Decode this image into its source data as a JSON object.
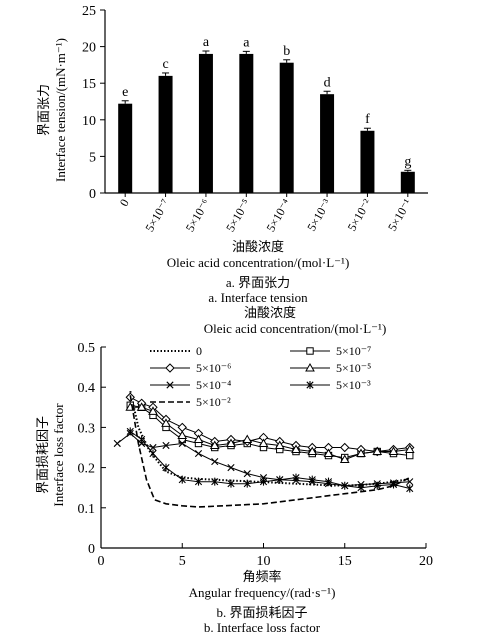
{
  "chart_data": [
    {
      "type": "bar",
      "ylabel_cn": "界面张力",
      "ylabel": "Interface tension/(mN·m⁻¹)",
      "xlabel_cn": "油酸浓度",
      "xlabel": "Oleic acid concentration/(mol·L⁻¹)",
      "caption_cn": "a. 界面张力",
      "caption": "a. Interface tension",
      "ylim": [
        0,
        25
      ],
      "yticks": [
        "0",
        "5",
        "10",
        "15",
        "20",
        "25"
      ],
      "categories": [
        "0",
        "5×10⁻⁷",
        "5×10⁻⁶",
        "5×10⁻⁵",
        "5×10⁻⁴",
        "5×10⁻³",
        "5×10⁻²",
        "5×10⁻¹"
      ],
      "values": [
        12.2,
        16.0,
        19.0,
        19.0,
        17.8,
        13.5,
        8.5,
        2.9
      ],
      "errors": [
        0.4,
        0.4,
        0.4,
        0.35,
        0.4,
        0.4,
        0.35,
        0.2
      ],
      "letters": [
        "e",
        "c",
        "a",
        "a",
        "b",
        "d",
        "f",
        "g"
      ]
    },
    {
      "type": "line",
      "top_label_cn": "油酸浓度",
      "top_label": "Oleic acid concentration/(mol·L⁻¹)",
      "ylabel_cn": "界面损耗因子",
      "ylabel": "Interface loss factor",
      "xlabel_cn": "角频率",
      "xlabel": "Angular frequency/(rad·s⁻¹)",
      "caption_cn": "b. 界面损耗因子",
      "caption": "b. Interface loss factor",
      "xlim": [
        0,
        20
      ],
      "ylim": [
        0,
        0.5
      ],
      "xticks": [
        "0",
        "5",
        "10",
        "15",
        "20"
      ],
      "yticks": [
        "0",
        "0.1",
        "0.2",
        "0.3",
        "0.4",
        "0.5"
      ],
      "series": [
        {
          "name": "0",
          "style": "dotted",
          "marker": "none",
          "x": [
            1.8,
            2.3,
            3,
            4,
            5,
            6,
            7,
            8,
            9,
            10,
            11,
            12,
            13,
            14,
            15,
            16,
            17,
            18,
            19
          ],
          "y": [
            0.39,
            0.3,
            0.24,
            0.19,
            0.175,
            0.172,
            0.17,
            0.168,
            0.166,
            0.164,
            0.162,
            0.16,
            0.158,
            0.156,
            0.155,
            0.157,
            0.16,
            0.165,
            0.172
          ]
        },
        {
          "name": "5×10⁻⁷",
          "style": "solid",
          "marker": "square",
          "x": [
            1.8,
            2.5,
            3.2,
            4,
            5,
            6,
            7,
            8,
            9,
            10,
            11,
            12,
            13,
            14,
            15,
            16,
            17,
            18,
            19
          ],
          "y": [
            0.355,
            0.35,
            0.33,
            0.3,
            0.27,
            0.26,
            0.25,
            0.255,
            0.26,
            0.25,
            0.245,
            0.24,
            0.235,
            0.23,
            0.225,
            0.235,
            0.24,
            0.235,
            0.23
          ]
        },
        {
          "name": "5×10⁻⁶",
          "style": "solid",
          "marker": "diamond",
          "x": [
            1.8,
            2.5,
            3.2,
            4,
            5,
            6,
            7,
            8,
            9,
            10,
            11,
            12,
            13,
            14,
            15,
            16,
            17,
            18,
            19
          ],
          "y": [
            0.375,
            0.36,
            0.35,
            0.32,
            0.3,
            0.285,
            0.265,
            0.27,
            0.265,
            0.275,
            0.265,
            0.255,
            0.25,
            0.25,
            0.25,
            0.245,
            0.24,
            0.245,
            0.25
          ]
        },
        {
          "name": "5×10⁻⁵",
          "style": "solid",
          "marker": "triangle",
          "x": [
            1.8,
            2.5,
            3.2,
            4,
            5,
            6,
            7,
            8,
            9,
            10,
            11,
            12,
            13,
            14,
            15,
            16,
            17,
            18,
            19
          ],
          "y": [
            0.35,
            0.35,
            0.34,
            0.31,
            0.28,
            0.27,
            0.255,
            0.26,
            0.27,
            0.26,
            0.255,
            0.245,
            0.24,
            0.235,
            0.22,
            0.235,
            0.24,
            0.24,
            0.245
          ]
        },
        {
          "name": "5×10⁻⁴",
          "style": "solid",
          "marker": "x",
          "x": [
            1,
            1.8,
            2.5,
            3.2,
            4,
            5,
            6,
            7,
            8,
            9,
            10,
            11,
            12,
            13,
            14,
            15,
            16,
            17,
            18,
            19
          ],
          "y": [
            0.26,
            0.285,
            0.26,
            0.25,
            0.255,
            0.26,
            0.235,
            0.215,
            0.2,
            0.185,
            0.175,
            0.17,
            0.168,
            0.165,
            0.16,
            0.155,
            0.158,
            0.16,
            0.162,
            0.165
          ]
        },
        {
          "name": "5×10⁻³",
          "style": "solid",
          "marker": "star",
          "x": [
            1.8,
            2.5,
            3.2,
            4,
            5,
            6,
            7,
            8,
            9,
            10,
            11,
            12,
            13,
            14,
            15,
            16,
            17,
            18,
            19
          ],
          "y": [
            0.29,
            0.27,
            0.235,
            0.2,
            0.17,
            0.165,
            0.165,
            0.16,
            0.16,
            0.165,
            0.17,
            0.175,
            0.17,
            0.165,
            0.155,
            0.15,
            0.155,
            0.158,
            0.148
          ]
        },
        {
          "name": "5×10⁻²",
          "style": "dashed",
          "marker": "none",
          "x": [
            1.8,
            2.3,
            2.8,
            3.3,
            4,
            5,
            6,
            7,
            8,
            9,
            10,
            11,
            12,
            13,
            14,
            15,
            16,
            17,
            18,
            19
          ],
          "y": [
            0.38,
            0.26,
            0.17,
            0.12,
            0.11,
            0.105,
            0.102,
            0.104,
            0.106,
            0.108,
            0.11,
            0.115,
            0.12,
            0.125,
            0.13,
            0.135,
            0.14,
            0.145,
            0.155,
            0.175
          ]
        }
      ]
    }
  ]
}
